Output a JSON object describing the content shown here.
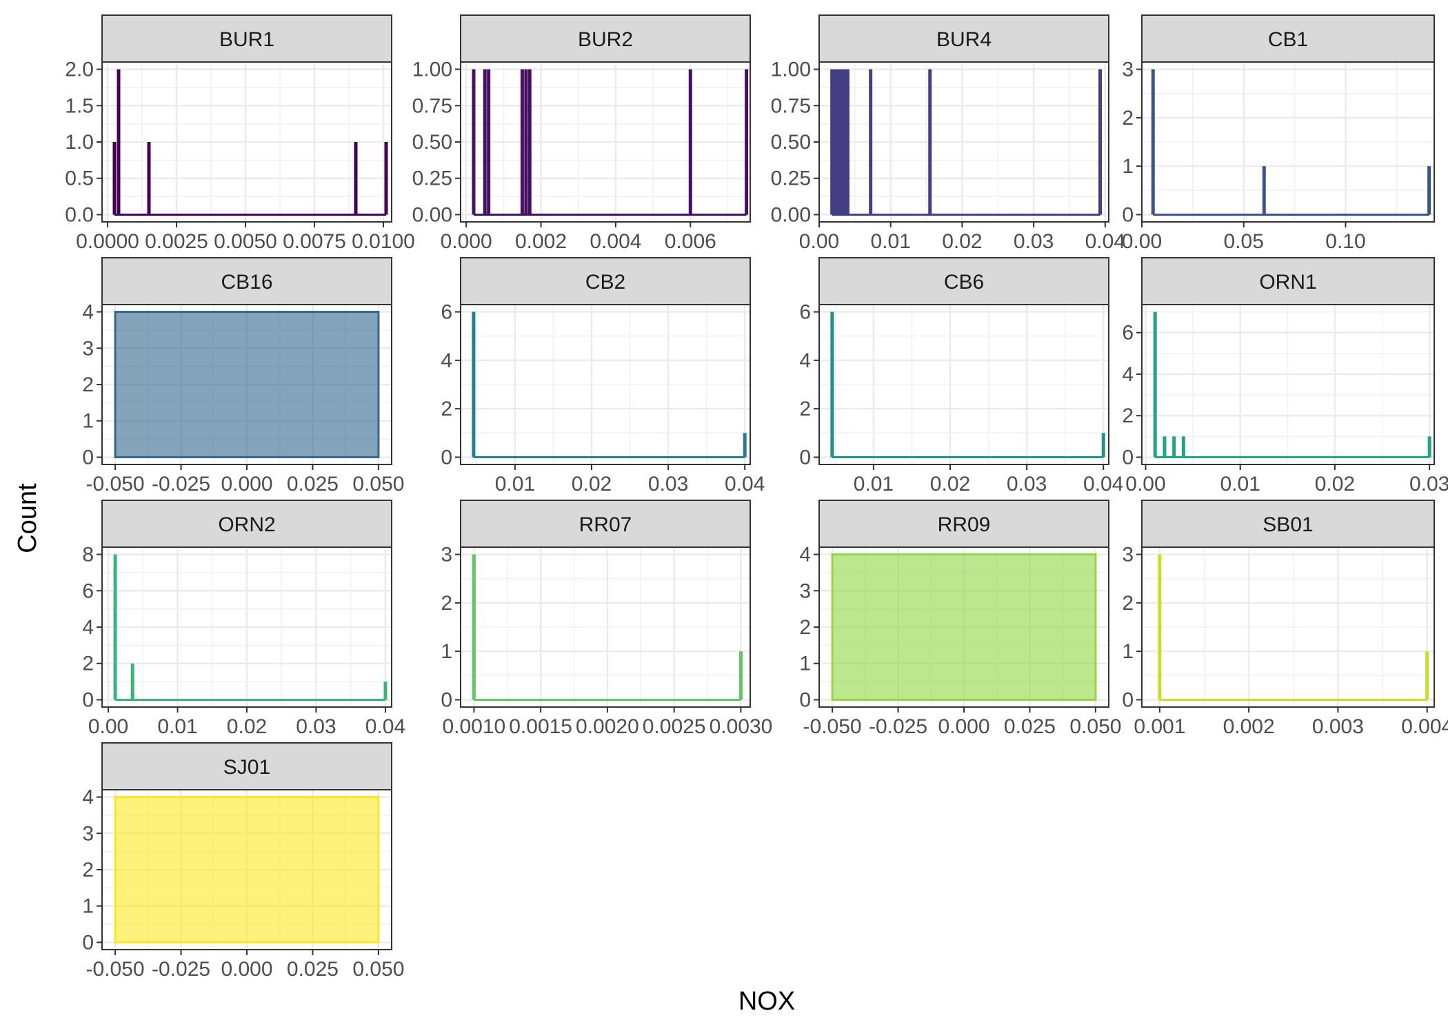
{
  "axis_titles": {
    "x": "NOX",
    "y": "Count"
  },
  "chart_data": {
    "type": "histogram",
    "xlabel": "NOX",
    "ylabel": "Count",
    "facet_wrap_ncol": 4,
    "strip_background": "#d9d9d9",
    "grid": true,
    "panels": [
      {
        "id": "BUR1",
        "color": "#440154",
        "xlim": [
          -0.0002,
          0.0103
        ],
        "ylim": [
          -0.1,
          2.1
        ],
        "xticks": [
          0.0,
          0.0025,
          0.005,
          0.0075,
          0.01
        ],
        "xtick_labels": [
          "0.0000",
          "0.0025",
          "0.0050",
          "0.0075",
          "0.0100"
        ],
        "yticks": [
          0,
          0.5,
          1,
          1.5,
          2
        ],
        "ytick_labels": [
          "0.0",
          "0.5",
          "1.0",
          "1.5",
          "2.0"
        ],
        "bins": [
          [
            0.00025,
            1
          ],
          [
            0.0004,
            2
          ],
          [
            0.0015,
            1
          ],
          [
            0.009,
            1
          ],
          [
            0.0101,
            1
          ]
        ]
      },
      {
        "id": "BUR2",
        "color": "#471063",
        "xlim": [
          -0.00015,
          0.0076
        ],
        "ylim": [
          -0.05,
          1.05
        ],
        "xticks": [
          0.0,
          0.002,
          0.004,
          0.006
        ],
        "xtick_labels": [
          "0.000",
          "0.002",
          "0.004",
          "0.006"
        ],
        "yticks": [
          0,
          0.25,
          0.5,
          0.75,
          1
        ],
        "ytick_labels": [
          "0.00",
          "0.25",
          "0.50",
          "0.75",
          "1.00"
        ],
        "bins": [
          [
            0.0002,
            1
          ],
          [
            0.0005,
            1
          ],
          [
            0.0006,
            1
          ],
          [
            0.0015,
            1
          ],
          [
            0.0016,
            1
          ],
          [
            0.0017,
            1
          ],
          [
            0.006,
            1
          ],
          [
            0.0075,
            1
          ]
        ]
      },
      {
        "id": "BUR4",
        "color": "#433e85",
        "xlim": [
          0.0,
          0.0405
        ],
        "ylim": [
          -0.05,
          1.05
        ],
        "xticks": [
          0.0,
          0.01,
          0.02,
          0.03,
          0.04
        ],
        "xtick_labels": [
          "0.00",
          "0.01",
          "0.02",
          "0.03",
          "0.04"
        ],
        "yticks": [
          0,
          0.25,
          0.5,
          0.75,
          1
        ],
        "ytick_labels": [
          "0.00",
          "0.25",
          "0.50",
          "0.75",
          "1.00"
        ],
        "bins": [
          [
            0.0018,
            1
          ],
          [
            0.002,
            1
          ],
          [
            0.0022,
            1
          ],
          [
            0.0024,
            1
          ],
          [
            0.0026,
            1
          ],
          [
            0.0028,
            1
          ],
          [
            0.003,
            1
          ],
          [
            0.0032,
            1
          ],
          [
            0.0034,
            1
          ],
          [
            0.0036,
            1
          ],
          [
            0.004,
            1
          ],
          [
            0.0072,
            1
          ],
          [
            0.0155,
            1
          ],
          [
            0.0393,
            1
          ]
        ]
      },
      {
        "id": "CB1",
        "color": "#3b528b",
        "xlim": [
          0.0,
          0.1435
        ],
        "ylim": [
          -0.15,
          3.15
        ],
        "xticks": [
          0.0,
          0.05,
          0.1
        ],
        "xtick_labels": [
          "0.00",
          "0.05",
          "0.10"
        ],
        "yticks": [
          0,
          1,
          2,
          3
        ],
        "ytick_labels": [
          "0",
          "1",
          "2",
          "3"
        ],
        "bins": [
          [
            0.0055,
            3
          ],
          [
            0.06,
            1
          ],
          [
            0.141,
            1
          ]
        ]
      },
      {
        "id": "CB16",
        "color": "#31688e",
        "flat_value": 4,
        "xlim": [
          -0.055,
          0.055
        ],
        "ylim": [
          -0.2,
          4.2
        ],
        "xticks": [
          -0.05,
          -0.025,
          0.0,
          0.025,
          0.05
        ],
        "xtick_labels": [
          "-0.050",
          "-0.025",
          "0.000",
          "0.025",
          "0.050"
        ],
        "yticks": [
          0,
          1,
          2,
          3,
          4
        ],
        "ytick_labels": [
          "0",
          "1",
          "2",
          "3",
          "4"
        ],
        "bins": []
      },
      {
        "id": "CB2",
        "color": "#287c8e",
        "xlim": [
          0.0029,
          0.0407
        ],
        "ylim": [
          -0.3,
          6.3
        ],
        "xticks": [
          0.01,
          0.02,
          0.03,
          0.04
        ],
        "xtick_labels": [
          "0.01",
          "0.02",
          "0.03",
          "0.04"
        ],
        "yticks": [
          0,
          2,
          4,
          6
        ],
        "ytick_labels": [
          "0",
          "2",
          "4",
          "6"
        ],
        "bins": [
          [
            0.0046,
            6
          ],
          [
            0.04,
            1
          ]
        ]
      },
      {
        "id": "CB6",
        "color": "#21918c",
        "xlim": [
          0.0029,
          0.0407
        ],
        "ylim": [
          -0.3,
          6.3
        ],
        "xticks": [
          0.01,
          0.02,
          0.03,
          0.04
        ],
        "xtick_labels": [
          "0.01",
          "0.02",
          "0.03",
          "0.04"
        ],
        "yticks": [
          0,
          2,
          4,
          6
        ],
        "ytick_labels": [
          "0",
          "2",
          "4",
          "6"
        ],
        "bins": [
          [
            0.0046,
            6
          ],
          [
            0.04,
            1
          ]
        ]
      },
      {
        "id": "ORN1",
        "color": "#20a486",
        "xlim": [
          -0.0004,
          0.0305
        ],
        "ylim": [
          -0.35,
          7.35
        ],
        "xticks": [
          0.0,
          0.01,
          0.02,
          0.03
        ],
        "xtick_labels": [
          "0.00",
          "0.01",
          "0.02",
          "0.03"
        ],
        "yticks": [
          0,
          2,
          4,
          6
        ],
        "ytick_labels": [
          "0",
          "2",
          "4",
          "6"
        ],
        "bins": [
          [
            0.001,
            7
          ],
          [
            0.002,
            1
          ],
          [
            0.003,
            1
          ],
          [
            0.004,
            1
          ],
          [
            0.03,
            1
          ]
        ]
      },
      {
        "id": "ORN2",
        "color": "#35b779",
        "xlim": [
          -0.0009,
          0.0409
        ],
        "ylim": [
          -0.4,
          8.4
        ],
        "xticks": [
          0.0,
          0.01,
          0.02,
          0.03,
          0.04
        ],
        "xtick_labels": [
          "0.00",
          "0.01",
          "0.02",
          "0.03",
          "0.04"
        ],
        "yticks": [
          0,
          2,
          4,
          6,
          8
        ],
        "ytick_labels": [
          "0",
          "2",
          "4",
          "6",
          "8"
        ],
        "bins": [
          [
            0.001,
            8
          ],
          [
            0.0035,
            2
          ],
          [
            0.04,
            1
          ]
        ]
      },
      {
        "id": "RR07",
        "color": "#5ec962",
        "xlim": [
          0.0009,
          0.00307
        ],
        "ylim": [
          -0.15,
          3.15
        ],
        "xticks": [
          0.001,
          0.0015,
          0.002,
          0.0025,
          0.003
        ],
        "xtick_labels": [
          "0.0010",
          "0.0015",
          "0.0020",
          "0.0025",
          "0.0030"
        ],
        "yticks": [
          0,
          1,
          2,
          3
        ],
        "ytick_labels": [
          "0",
          "1",
          "2",
          "3"
        ],
        "bins": [
          [
            0.001,
            3
          ],
          [
            0.003,
            1
          ]
        ]
      },
      {
        "id": "RR09",
        "color": "#90d743",
        "flat_value": 4,
        "xlim": [
          -0.055,
          0.055
        ],
        "ylim": [
          -0.2,
          4.2
        ],
        "xticks": [
          -0.05,
          -0.025,
          0.0,
          0.025,
          0.05
        ],
        "xtick_labels": [
          "-0.050",
          "-0.025",
          "0.000",
          "0.025",
          "0.050"
        ],
        "yticks": [
          0,
          1,
          2,
          3,
          4
        ],
        "ytick_labels": [
          "0",
          "1",
          "2",
          "3",
          "4"
        ],
        "bins": []
      },
      {
        "id": "SB01",
        "color": "#c8e020",
        "xlim": [
          0.0008,
          0.00408
        ],
        "ylim": [
          -0.15,
          3.15
        ],
        "xticks": [
          0.001,
          0.002,
          0.003,
          0.004
        ],
        "xtick_labels": [
          "0.001",
          "0.002",
          "0.003",
          "0.004"
        ],
        "yticks": [
          0,
          1,
          2,
          3
        ],
        "ytick_labels": [
          "0",
          "1",
          "2",
          "3"
        ],
        "bins": [
          [
            0.001,
            3
          ],
          [
            0.004,
            1
          ]
        ]
      },
      {
        "id": "SJ01",
        "color": "#fde725",
        "flat_value": 4,
        "xlim": [
          -0.055,
          0.055
        ],
        "ylim": [
          -0.2,
          4.2
        ],
        "xticks": [
          -0.05,
          -0.025,
          0.0,
          0.025,
          0.05
        ],
        "xtick_labels": [
          "-0.050",
          "-0.025",
          "0.000",
          "0.025",
          "0.050"
        ],
        "yticks": [
          0,
          1,
          2,
          3,
          4
        ],
        "ytick_labels": [
          "0",
          "1",
          "2",
          "3",
          "4"
        ],
        "bins": []
      }
    ]
  }
}
